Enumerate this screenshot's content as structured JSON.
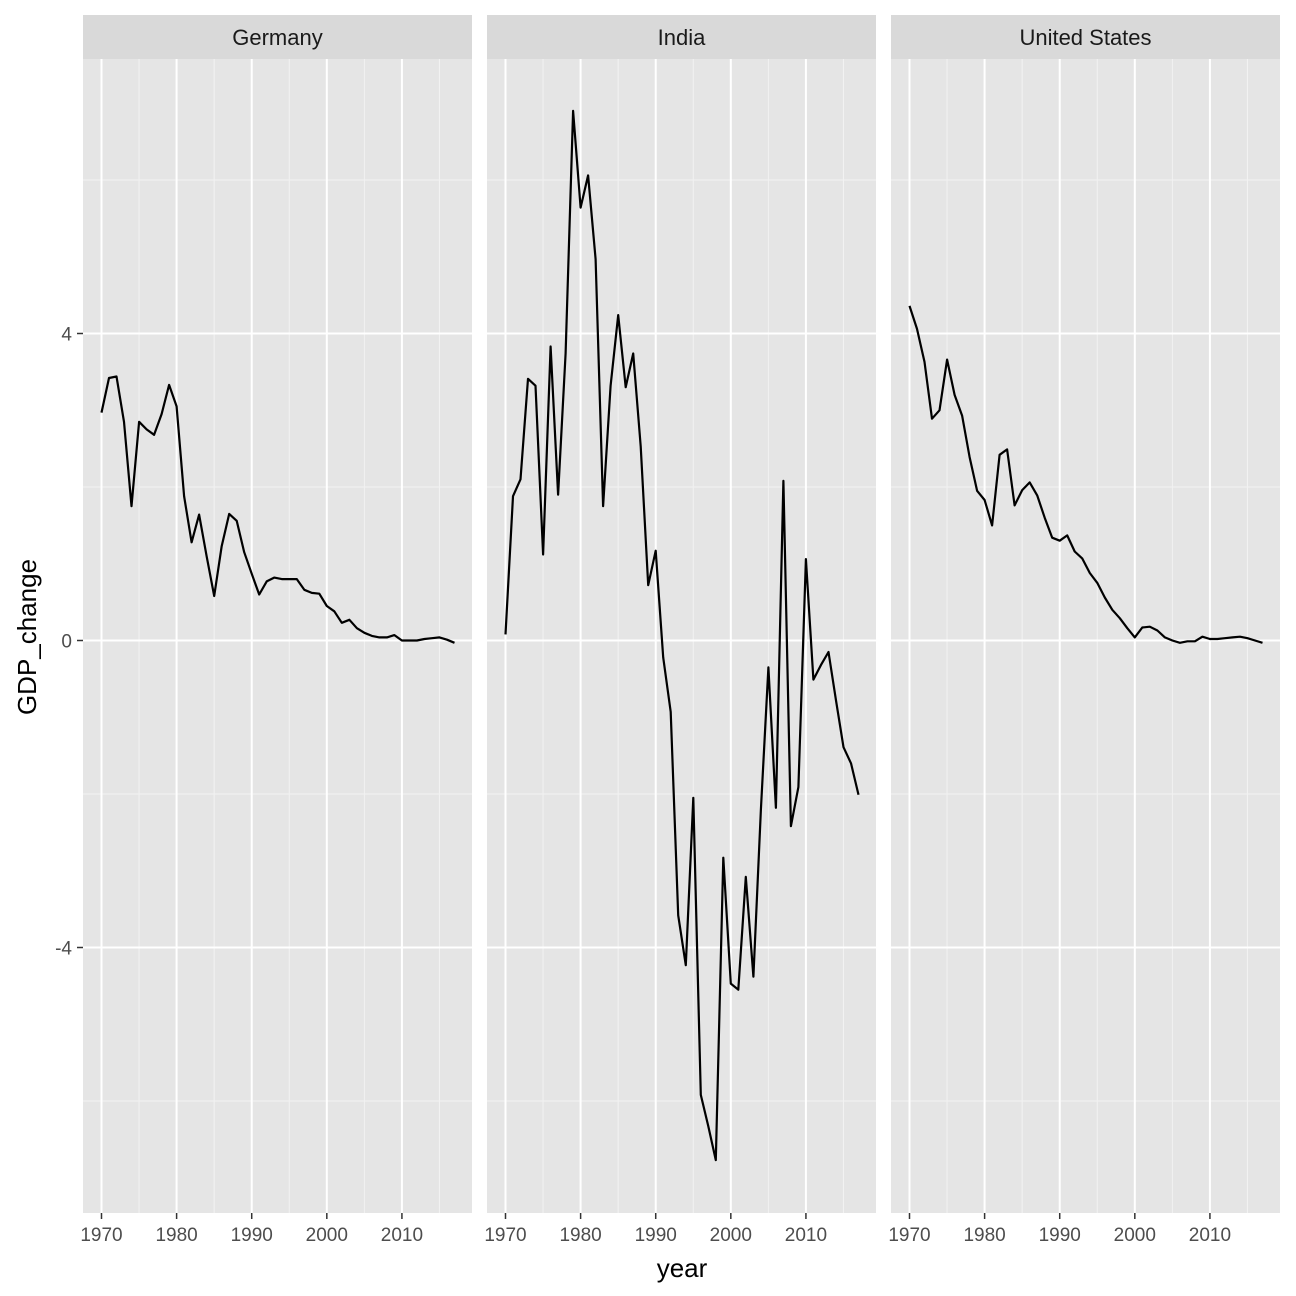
{
  "chart_data": {
    "type": "line",
    "facet_by": "country",
    "xlabel": "year",
    "ylabel": "GDP_change",
    "xlim": [
      1969.6,
      1977.6
    ],
    "ylim": [
      -7.4,
      8.1
    ],
    "x_ticks": [
      1970,
      1980,
      1990,
      2000,
      2010
    ],
    "y_ticks": [
      -4,
      0,
      4
    ],
    "grid": true,
    "legend": "none",
    "line_color": "#000000",
    "panel_background": "#e5e5e5",
    "strip_background": "#d9d9d9",
    "facets": [
      {
        "name": "Germany",
        "x": [
          1970,
          1971,
          1972,
          1973,
          1974,
          1975,
          1976,
          1977,
          1978,
          1979,
          1980,
          1981,
          1982,
          1983,
          1984,
          1985,
          1986,
          1987,
          1988,
          1989,
          1990,
          1991,
          1992,
          1993,
          1994,
          1995,
          1996,
          1997,
          1998,
          1999,
          2000,
          2001,
          2002,
          2003,
          2004,
          2005,
          2006,
          2007,
          2008,
          2009,
          2010,
          2011,
          2012,
          2013,
          2014,
          2015,
          2016,
          2017
        ],
        "y": [
          2.97,
          3.42,
          3.44,
          2.85,
          1.75,
          2.85,
          2.75,
          2.68,
          2.95,
          3.33,
          3.05,
          1.88,
          1.28,
          1.64,
          1.1,
          0.58,
          1.23,
          1.65,
          1.56,
          1.15,
          0.87,
          0.6,
          0.77,
          0.82,
          0.8,
          0.8,
          0.8,
          0.66,
          0.62,
          0.61,
          0.45,
          0.38,
          0.23,
          0.27,
          0.16,
          0.1,
          0.06,
          0.04,
          0.04,
          0.07,
          0.0,
          0.0,
          0.0,
          0.02,
          0.03,
          0.04,
          0.01,
          -0.03
        ]
      },
      {
        "name": "India",
        "x": [
          1970,
          1971,
          1972,
          1973,
          1974,
          1975,
          1976,
          1977,
          1978,
          1979,
          1980,
          1981,
          1982,
          1983,
          1984,
          1985,
          1986,
          1987,
          1988,
          1989,
          1990,
          1991,
          1992,
          1993,
          1994,
          1995,
          1996,
          1997,
          1998,
          1999,
          2000,
          2001,
          2002,
          2003,
          2004,
          2005,
          2006,
          2007,
          2008,
          2009,
          2010,
          2011,
          2012,
          2013,
          2014,
          2015,
          2016,
          2017
        ],
        "y": [
          0.08,
          1.88,
          2.1,
          3.41,
          3.32,
          1.12,
          3.83,
          1.9,
          3.74,
          6.9,
          5.64,
          6.06,
          4.97,
          1.75,
          3.32,
          4.24,
          3.3,
          3.74,
          2.53,
          0.72,
          1.17,
          -0.22,
          -0.93,
          -3.58,
          -4.23,
          -2.05,
          -5.92,
          -6.33,
          -6.77,
          -2.83,
          -4.47,
          -4.55,
          -3.08,
          -4.38,
          -2.2,
          -0.35,
          -2.18,
          2.08,
          -2.42,
          -1.91,
          1.06,
          -0.51,
          -0.32,
          -0.15,
          -0.78,
          -1.39,
          -1.6,
          -2.01
        ]
      },
      {
        "name": "United States",
        "x": [
          1970,
          1971,
          1972,
          1973,
          1974,
          1975,
          1976,
          1977,
          1978,
          1979,
          1980,
          1981,
          1982,
          1983,
          1984,
          1985,
          1986,
          1987,
          1988,
          1989,
          1990,
          1991,
          1992,
          1993,
          1994,
          1995,
          1996,
          1997,
          1998,
          1999,
          2000,
          2001,
          2002,
          2003,
          2004,
          2005,
          2006,
          2007,
          2008,
          2009,
          2010,
          2011,
          2012,
          2013,
          2014,
          2015,
          2016,
          2017
        ],
        "y": [
          4.36,
          4.06,
          3.63,
          2.89,
          3.0,
          3.66,
          3.2,
          2.93,
          2.39,
          1.95,
          1.83,
          1.5,
          2.42,
          2.49,
          1.76,
          1.96,
          2.06,
          1.89,
          1.6,
          1.34,
          1.3,
          1.37,
          1.16,
          1.07,
          0.88,
          0.75,
          0.56,
          0.4,
          0.29,
          0.16,
          0.04,
          0.17,
          0.18,
          0.13,
          0.04,
          0.0,
          -0.03,
          -0.01,
          -0.01,
          0.05,
          0.02,
          0.02,
          0.03,
          0.04,
          0.05,
          0.03,
          0.0,
          -0.03
        ]
      }
    ]
  }
}
